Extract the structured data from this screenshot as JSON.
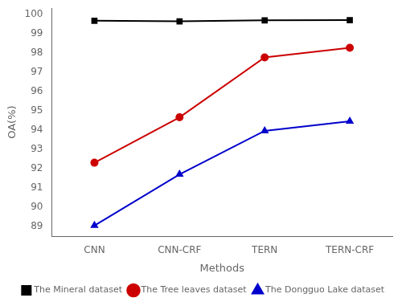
{
  "chart_data": {
    "type": "line",
    "x_label": "Methods",
    "y_label": "OA(%)",
    "categories": [
      "CNN",
      "CNN-CRF",
      "TERN",
      "TERN-CRF"
    ],
    "series": [
      {
        "name": "The Mineral dataset",
        "color": "#000000",
        "marker": "square",
        "line_style": "solid",
        "values": [
          99.65,
          99.62,
          99.67,
          99.68
        ]
      },
      {
        "name": "The Tree leaves dataset",
        "color": "#cc0000",
        "marker": "circle",
        "line_style": "solid",
        "values": [
          92.3,
          94.65,
          97.75,
          98.25
        ]
      },
      {
        "name": "The Dongguo Lake dataset",
        "color": "#0000cc",
        "marker": "triangle",
        "line_style": "solid",
        "values": [
          89.05,
          91.7,
          93.95,
          94.45
        ]
      }
    ],
    "ylim": [
      88.5,
      100.3
    ],
    "yticks": [
      89,
      90,
      91,
      92,
      93,
      94,
      95,
      96,
      97,
      98,
      99,
      100
    ],
    "grid": false,
    "legend": "lower right"
  }
}
